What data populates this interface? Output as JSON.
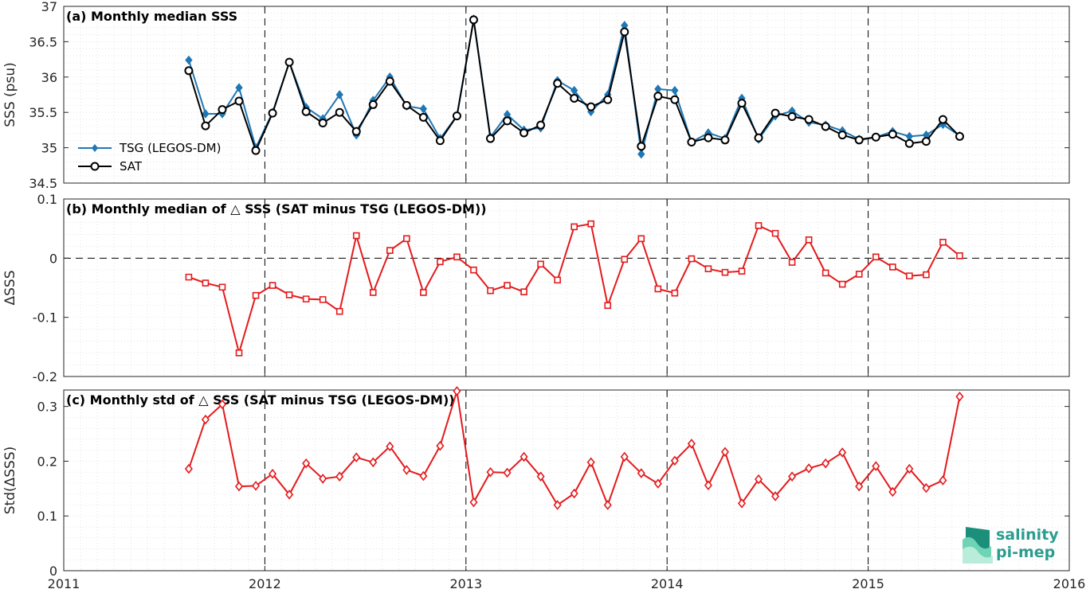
{
  "chart_data": [
    {
      "type": "line",
      "title": "(a) Monthly median SSS",
      "ylabel": "SSS (psu)",
      "ylim": [
        34.5,
        37
      ],
      "yticks": [
        "34.5",
        "35",
        "35.5",
        "36",
        "36.5",
        "37"
      ],
      "xlim": [
        "2011-01-01",
        "2016-01-01"
      ],
      "grid": true,
      "legend_position": "left",
      "series": [
        {
          "name": "TSG (LEGOS-DM)",
          "color": "#1f77b4",
          "marker": "diamond",
          "x": [
            "2011-08",
            "2011-09",
            "2011-10",
            "2011-11",
            "2011-12",
            "2012-01",
            "2012-02",
            "2012-03",
            "2012-04",
            "2012-05",
            "2012-06",
            "2012-07",
            "2012-08",
            "2012-09",
            "2012-10",
            "2012-11",
            "2012-12",
            "2013-01",
            "2013-02",
            "2013-03",
            "2013-04",
            "2013-05",
            "2013-06",
            "2013-07",
            "2013-08",
            "2013-09",
            "2013-10",
            "2013-11",
            "2013-12",
            "2014-01",
            "2014-02",
            "2014-03",
            "2014-04",
            "2014-05",
            "2014-06",
            "2014-07",
            "2014-08",
            "2014-09",
            "2014-10",
            "2014-11",
            "2014-12",
            "2015-01",
            "2015-02",
            "2015-03",
            "2015-04",
            "2015-05",
            "2015-06"
          ],
          "y": [
            36.24,
            35.48,
            35.48,
            35.85,
            35.0,
            35.5,
            36.21,
            35.57,
            35.41,
            35.75,
            35.18,
            35.67,
            36.0,
            35.59,
            35.55,
            35.13,
            35.45,
            36.82,
            35.15,
            35.47,
            35.25,
            35.28,
            35.95,
            35.81,
            35.51,
            35.75,
            36.73,
            34.91,
            35.83,
            35.81,
            35.08,
            35.21,
            35.13,
            35.7,
            35.12,
            35.45,
            35.52,
            35.36,
            35.32,
            35.24,
            35.12,
            35.15,
            35.23,
            35.16,
            35.18,
            35.33,
            35.17
          ]
        },
        {
          "name": "SAT",
          "color": "#000000",
          "marker": "circle",
          "x": [
            "2011-08",
            "2011-09",
            "2011-10",
            "2011-11",
            "2011-12",
            "2012-01",
            "2012-02",
            "2012-03",
            "2012-04",
            "2012-05",
            "2012-06",
            "2012-07",
            "2012-08",
            "2012-09",
            "2012-10",
            "2012-11",
            "2012-12",
            "2013-01",
            "2013-02",
            "2013-03",
            "2013-04",
            "2013-05",
            "2013-06",
            "2013-07",
            "2013-08",
            "2013-09",
            "2013-10",
            "2013-11",
            "2013-12",
            "2014-01",
            "2014-02",
            "2014-03",
            "2014-04",
            "2014-05",
            "2014-06",
            "2014-07",
            "2014-08",
            "2014-09",
            "2014-10",
            "2014-11",
            "2014-12",
            "2015-01",
            "2015-02",
            "2015-03",
            "2015-04",
            "2015-05",
            "2015-06"
          ],
          "y": [
            36.09,
            35.31,
            35.54,
            35.66,
            34.96,
            35.49,
            36.21,
            35.51,
            35.35,
            35.5,
            35.23,
            35.61,
            35.94,
            35.6,
            35.43,
            35.1,
            35.45,
            36.81,
            35.13,
            35.38,
            35.21,
            35.32,
            35.91,
            35.7,
            35.58,
            35.68,
            36.64,
            35.02,
            35.73,
            35.68,
            35.08,
            35.14,
            35.11,
            35.63,
            35.14,
            35.49,
            35.44,
            35.4,
            35.3,
            35.18,
            35.11,
            35.15,
            35.19,
            35.06,
            35.09,
            35.4,
            35.16
          ]
        }
      ]
    },
    {
      "type": "line",
      "title": "(b) Monthly median of △ SSS (SAT minus TSG (LEGOS-DM))",
      "ylabel": "ΔSSS",
      "ylim": [
        -0.2,
        0.1
      ],
      "yticks": [
        "-0.2",
        "-0.1",
        "0",
        "0.1"
      ],
      "xlim": [
        "2011-01-01",
        "2016-01-01"
      ],
      "grid": true,
      "series": [
        {
          "color": "#e41a1c",
          "marker": "square",
          "x": [
            "2011-08",
            "2011-09",
            "2011-10",
            "2011-11",
            "2011-12",
            "2012-01",
            "2012-02",
            "2012-03",
            "2012-04",
            "2012-05",
            "2012-06",
            "2012-07",
            "2012-08",
            "2012-09",
            "2012-10",
            "2012-11",
            "2012-12",
            "2013-01",
            "2013-02",
            "2013-03",
            "2013-04",
            "2013-05",
            "2013-06",
            "2013-07",
            "2013-08",
            "2013-09",
            "2013-10",
            "2013-11",
            "2013-12",
            "2014-01",
            "2014-02",
            "2014-03",
            "2014-04",
            "2014-05",
            "2014-06",
            "2014-07",
            "2014-08",
            "2014-09",
            "2014-10",
            "2014-11",
            "2014-12",
            "2015-01",
            "2015-02",
            "2015-03",
            "2015-04",
            "2015-05",
            "2015-06"
          ],
          "y": [
            -0.032,
            -0.042,
            -0.049,
            -0.16,
            -0.063,
            -0.046,
            -0.062,
            -0.069,
            -0.07,
            -0.09,
            0.038,
            -0.058,
            0.013,
            0.033,
            -0.058,
            -0.006,
            0.002,
            -0.02,
            -0.055,
            -0.046,
            -0.057,
            -0.01,
            -0.037,
            0.053,
            0.058,
            -0.08,
            -0.002,
            0.033,
            -0.052,
            -0.059,
            -0.001,
            -0.018,
            -0.024,
            -0.022,
            0.055,
            0.042,
            -0.007,
            0.031,
            -0.025,
            -0.044,
            -0.027,
            0.002,
            -0.015,
            -0.03,
            -0.028,
            0.027,
            0.004
          ]
        }
      ]
    },
    {
      "type": "line",
      "title": "(c) Monthly std of △ SSS (SAT minus TSG (LEGOS-DM))",
      "ylabel": "Std(ΔSSS)",
      "ylim": [
        0,
        0.33
      ],
      "yticks": [
        "0",
        "0.1",
        "0.2",
        "0.3"
      ],
      "xlim": [
        "2011-01-01",
        "2016-01-01"
      ],
      "xticks": [
        "2011",
        "2012",
        "2013",
        "2014",
        "2015",
        "2016"
      ],
      "grid": true,
      "series": [
        {
          "color": "#e41a1c",
          "marker": "diamond",
          "x": [
            "2011-08",
            "2011-09",
            "2011-10",
            "2011-11",
            "2011-12",
            "2012-01",
            "2012-02",
            "2012-03",
            "2012-04",
            "2012-05",
            "2012-06",
            "2012-07",
            "2012-08",
            "2012-09",
            "2012-10",
            "2012-11",
            "2012-12",
            "2013-01",
            "2013-02",
            "2013-03",
            "2013-04",
            "2013-05",
            "2013-06",
            "2013-07",
            "2013-08",
            "2013-09",
            "2013-10",
            "2013-11",
            "2013-12",
            "2014-01",
            "2014-02",
            "2014-03",
            "2014-04",
            "2014-05",
            "2014-06",
            "2014-07",
            "2014-08",
            "2014-09",
            "2014-10",
            "2014-11",
            "2014-12",
            "2015-01",
            "2015-02",
            "2015-03",
            "2015-04",
            "2015-05",
            "2015-06"
          ],
          "y": [
            0.186,
            0.276,
            0.304,
            0.154,
            0.155,
            0.177,
            0.139,
            0.196,
            0.168,
            0.172,
            0.207,
            0.198,
            0.227,
            0.184,
            0.173,
            0.228,
            0.328,
            0.125,
            0.18,
            0.179,
            0.208,
            0.172,
            0.12,
            0.141,
            0.198,
            0.12,
            0.208,
            0.178,
            0.159,
            0.201,
            0.232,
            0.156,
            0.217,
            0.123,
            0.167,
            0.136,
            0.172,
            0.187,
            0.196,
            0.216,
            0.154,
            0.191,
            0.144,
            0.186,
            0.151,
            0.165,
            0.318
          ]
        }
      ]
    }
  ],
  "logo": {
    "line1": "salinity",
    "line2": "pi-mep"
  }
}
